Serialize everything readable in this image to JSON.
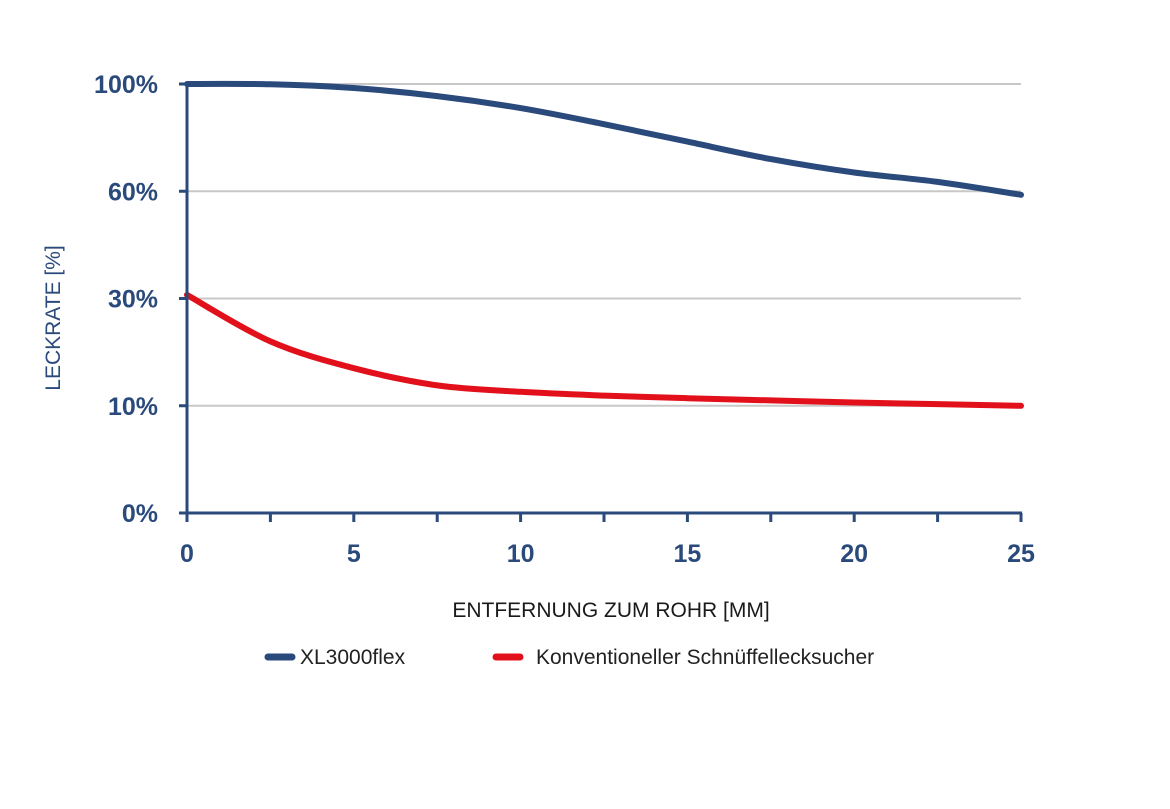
{
  "chart_data": {
    "type": "line",
    "xlabel": "ENTFERNUNG ZUM ROHR [MM]",
    "ylabel": "LECKRATE [%]",
    "x_ticks": [
      0,
      5,
      10,
      15,
      20,
      25
    ],
    "x_minor_ticks": [
      2.5,
      7.5,
      12.5,
      17.5,
      22.5
    ],
    "xlim": [
      0,
      25
    ],
    "y_ticks": [
      "0%",
      "10%",
      "30%",
      "60%",
      "100%"
    ],
    "y_scale": "categorical-equal-spacing",
    "grid": true,
    "legend_position": "bottom",
    "series": [
      {
        "name": "XL3000flex",
        "color": "#2b4a7c",
        "x": [
          0,
          2.5,
          5,
          7.5,
          10,
          12.5,
          15,
          17.5,
          20,
          22.5,
          25
        ],
        "y": [
          100,
          99.9,
          98.5,
          95.5,
          91,
          85,
          78.5,
          72,
          67,
          63.5,
          59
        ]
      },
      {
        "name": "Konventioneller Schnüffellecksucher",
        "color": "#e2101a",
        "x": [
          0,
          2.5,
          5,
          7.5,
          10,
          12.5,
          15,
          17.5,
          20,
          22.5,
          25
        ],
        "y": [
          31,
          22,
          17,
          13.8,
          12.6,
          11.9,
          11.4,
          11,
          10.6,
          10.3,
          10
        ]
      }
    ]
  }
}
